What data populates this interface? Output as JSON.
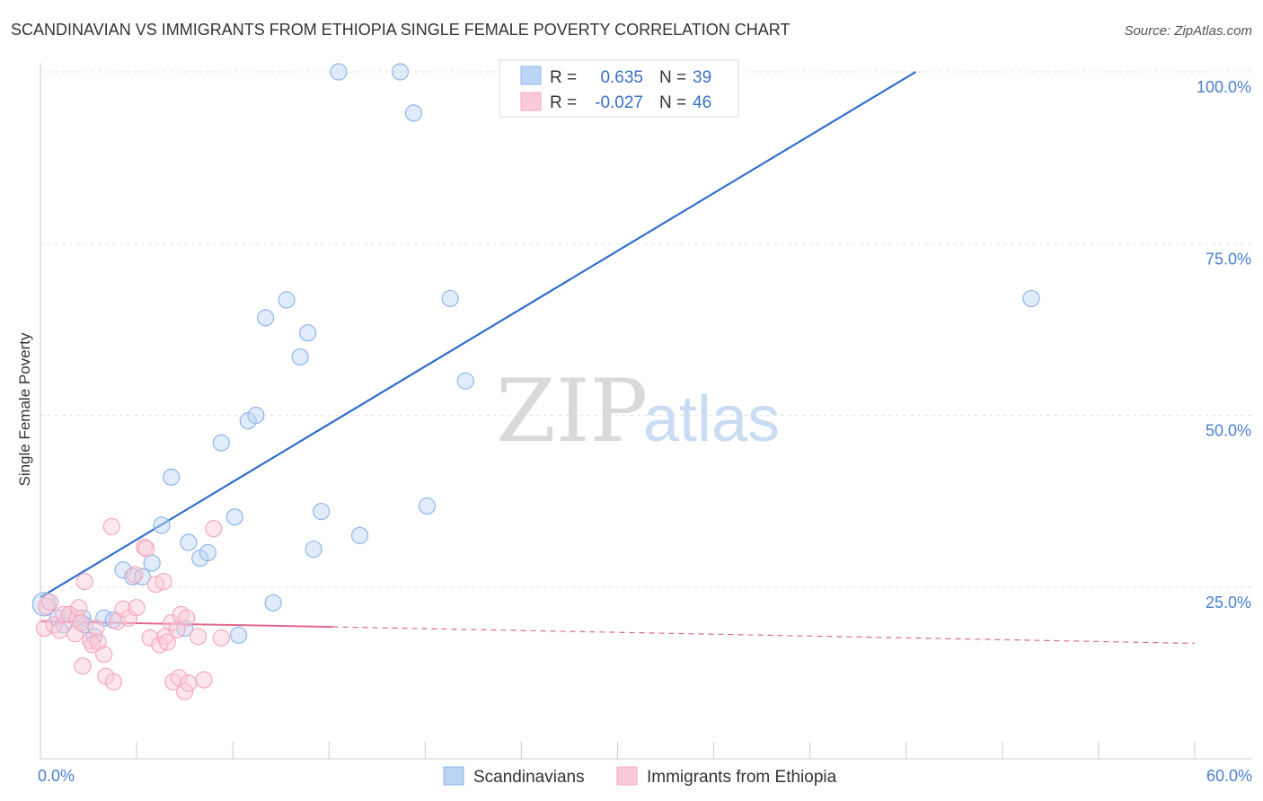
{
  "chart_data": {
    "type": "scatter",
    "title": "SCANDINAVIAN VS IMMIGRANTS FROM ETHIOPIA SINGLE FEMALE POVERTY CORRELATION CHART",
    "source": "Source: ZipAtlas.com",
    "ylabel": "Single Female Poverty",
    "xlim": [
      0,
      60
    ],
    "ylim": [
      0,
      100
    ],
    "x_tick_labels": [
      "0.0%",
      "60.0%"
    ],
    "y_ticks": [
      {
        "value": 25,
        "label": "25.0%"
      },
      {
        "value": 50,
        "label": "50.0%"
      },
      {
        "value": 75,
        "label": "75.0%"
      },
      {
        "value": 100,
        "label": "100.0%"
      }
    ],
    "legend": [
      {
        "r_label": "R =",
        "r_value": "0.635",
        "n_label": "N =",
        "n_value": "39"
      },
      {
        "r_label": "R =",
        "r_value": "-0.027",
        "n_label": "N =",
        "n_value": "46"
      }
    ],
    "series": [
      {
        "name": "Scandinavians",
        "color": "#8fb6ea",
        "line_color": "#2e6fcf",
        "trend": {
          "x0": 0,
          "y0": 23.5,
          "x1": 45.5,
          "y1": 100
        },
        "points": [
          [
            0.2,
            22.5
          ],
          [
            0.9,
            20.5
          ],
          [
            1.2,
            19.5
          ],
          [
            1.5,
            21
          ],
          [
            2.2,
            20.5
          ],
          [
            2.3,
            19.5
          ],
          [
            2.8,
            17.8
          ],
          [
            3.3,
            20.5
          ],
          [
            3.8,
            20.2
          ],
          [
            4.3,
            27.5
          ],
          [
            4.8,
            26.5
          ],
          [
            5.3,
            26.5
          ],
          [
            5.8,
            28.5
          ],
          [
            6.3,
            34
          ],
          [
            6.8,
            41
          ],
          [
            7.5,
            19
          ],
          [
            7.7,
            31.5
          ],
          [
            8.3,
            29.2
          ],
          [
            8.7,
            30
          ],
          [
            9.4,
            46
          ],
          [
            10.1,
            35.2
          ],
          [
            10.3,
            18
          ],
          [
            10.8,
            49.2
          ],
          [
            11.2,
            50
          ],
          [
            11.7,
            64.2
          ],
          [
            12.1,
            22.7
          ],
          [
            12.8,
            66.8
          ],
          [
            13.5,
            58.5
          ],
          [
            13.9,
            62
          ],
          [
            14.2,
            30.5
          ],
          [
            14.6,
            36
          ],
          [
            15.5,
            100
          ],
          [
            16.6,
            32.5
          ],
          [
            18.7,
            100
          ],
          [
            19.4,
            94
          ],
          [
            20.1,
            36.8
          ],
          [
            21.3,
            67
          ],
          [
            22.1,
            55
          ],
          [
            51.5,
            67
          ]
        ]
      },
      {
        "name": "Immigrants from Ethiopia",
        "color": "#f4a9c0",
        "line_color": "#e0688e",
        "trend": {
          "x0": 0,
          "y0": 20,
          "x1": 15.2,
          "y1": 19.2,
          "x_end": 60,
          "y_end": 16.8
        },
        "points": [
          [
            0.2,
            19
          ],
          [
            0.3,
            22.2
          ],
          [
            0.5,
            22.8
          ],
          [
            0.7,
            19.5
          ],
          [
            1.0,
            18.7
          ],
          [
            1.2,
            21
          ],
          [
            1.5,
            21
          ],
          [
            1.8,
            18.2
          ],
          [
            1.9,
            20.5
          ],
          [
            2.0,
            22
          ],
          [
            2.1,
            19.8
          ],
          [
            2.2,
            13.5
          ],
          [
            2.3,
            25.8
          ],
          [
            2.6,
            17.2
          ],
          [
            2.7,
            16.6
          ],
          [
            2.9,
            19
          ],
          [
            3.0,
            17
          ],
          [
            3.3,
            15.2
          ],
          [
            3.4,
            12
          ],
          [
            3.7,
            33.8
          ],
          [
            3.8,
            11.2
          ],
          [
            4.0,
            20
          ],
          [
            4.3,
            21.8
          ],
          [
            4.6,
            20.5
          ],
          [
            4.9,
            26.8
          ],
          [
            5.0,
            22
          ],
          [
            5.4,
            30.8
          ],
          [
            5.5,
            30.6
          ],
          [
            5.7,
            17.6
          ],
          [
            6.0,
            25.4
          ],
          [
            6.2,
            16.6
          ],
          [
            6.4,
            25.8
          ],
          [
            6.5,
            17.8
          ],
          [
            6.6,
            17
          ],
          [
            6.8,
            19.8
          ],
          [
            6.9,
            11.2
          ],
          [
            7.1,
            18.8
          ],
          [
            7.2,
            11.8
          ],
          [
            7.3,
            21
          ],
          [
            7.5,
            9.8
          ],
          [
            7.6,
            20.5
          ],
          [
            7.7,
            11
          ],
          [
            8.2,
            17.8
          ],
          [
            8.5,
            11.5
          ],
          [
            9.0,
            33.5
          ],
          [
            9.4,
            17.6
          ]
        ]
      }
    ]
  }
}
